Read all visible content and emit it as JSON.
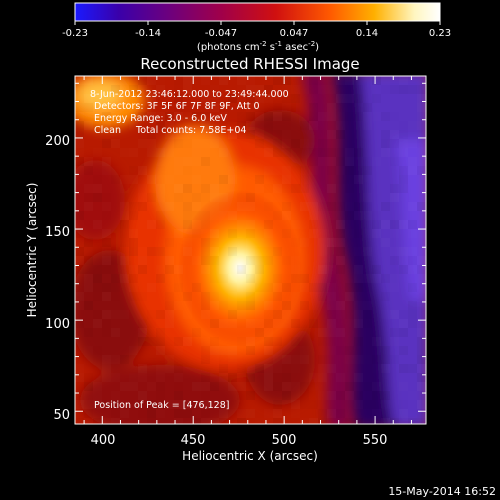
{
  "colorbar": {
    "ticks": [
      "-0.23",
      "-0.14",
      "-0.047",
      "0.047",
      "0.14",
      "0.23"
    ],
    "units_prefix": "(photons cm",
    "units_exp1": "-2",
    "units_mid": " s",
    "units_exp2": "-1",
    "units_mid2": " asec",
    "units_exp3": "-2",
    "units_suffix": ")",
    "colormap_stops": [
      "#1a1aff",
      "#3a00aa",
      "#6a0080",
      "#a0004a",
      "#d01010",
      "#ff5a00",
      "#ffb000",
      "#fff6c0",
      "#ffffff"
    ]
  },
  "title": "Reconstructed RHESSI Image",
  "info": {
    "time_range": "8-Jun-2012 23:46:12.000 to 23:49:44.000",
    "detectors": "Detectors: 3F 5F 6F 7F 8F 9F, Att 0",
    "energy_range": "Energy Range: 3.0 - 6.0 keV",
    "clean_total": "Clean     Total counts: 7.58E+04"
  },
  "peak_label": "Position of Peak = [476,128]",
  "axes": {
    "x_label": "Heliocentric X (arcsec)",
    "y_label": "Heliocentric Y (arcsec)",
    "x_ticks": [
      "400",
      "450",
      "500",
      "550"
    ],
    "y_ticks": [
      "50",
      "100",
      "150",
      "200"
    ],
    "x_range": [
      385,
      578
    ],
    "y_range": [
      43,
      234
    ]
  },
  "footer_timestamp": "15-May-2014 16:52"
}
